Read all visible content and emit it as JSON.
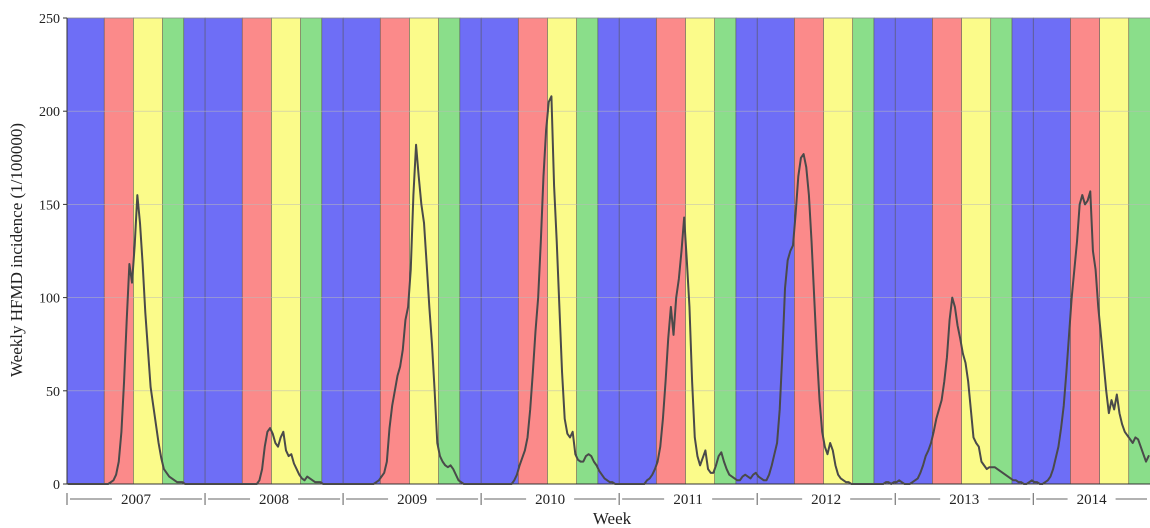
{
  "chart_data": {
    "type": "line",
    "title": "",
    "xlabel": "Week",
    "ylabel": "Weekly HFMD incidence (1/100000)",
    "ylim": [
      0,
      250
    ],
    "yticks": [
      0,
      50,
      100,
      150,
      200,
      250
    ],
    "grid": true,
    "legend": "none",
    "years": [
      "2007",
      "2008",
      "2009",
      "2010",
      "2011",
      "2012",
      "2013",
      "2014"
    ],
    "season_colors": {
      "blue": "#6e6ef6",
      "red": "#fb8a8a",
      "yellow": "#fbfb8a",
      "green": "#8ade8a"
    },
    "season_pattern_weeks": [
      {
        "color": "blue",
        "weeks": 14
      },
      {
        "color": "red",
        "weeks": 11
      },
      {
        "color": "yellow",
        "weeks": 11
      },
      {
        "color": "green",
        "weeks": 8
      },
      {
        "color": "blue",
        "weeks": 8
      }
    ],
    "line_color": "#4a4a4a",
    "series": [
      {
        "values": [
          0,
          0,
          0,
          0,
          0,
          0,
          0,
          0,
          0,
          0,
          0,
          0,
          0,
          0,
          0,
          0,
          1,
          2,
          5,
          12,
          28,
          55,
          88,
          118,
          108,
          128,
          155,
          140,
          118,
          92,
          72,
          52,
          42,
          32,
          22,
          14,
          8,
          6,
          4,
          3,
          2,
          1,
          1,
          1,
          0,
          0,
          0,
          0,
          0,
          0,
          0,
          0,
          0,
          0,
          0,
          0,
          0,
          0,
          0,
          0,
          0,
          0,
          0,
          0,
          0,
          0,
          0,
          0,
          0,
          0,
          0,
          0,
          2,
          8,
          20,
          28,
          30,
          27,
          22,
          20,
          25,
          28,
          18,
          15,
          16,
          11,
          8,
          5,
          3,
          2,
          4,
          3,
          2,
          1,
          1,
          1,
          0,
          0,
          0,
          0,
          0,
          0,
          0,
          0,
          0,
          0,
          0,
          0,
          0,
          0,
          0,
          0,
          0,
          0,
          0,
          0,
          1,
          2,
          4,
          6,
          12,
          30,
          42,
          50,
          58,
          63,
          72,
          88,
          95,
          115,
          155,
          182,
          165,
          150,
          140,
          118,
          95,
          75,
          50,
          22,
          15,
          12,
          10,
          9,
          10,
          8,
          5,
          2,
          1,
          0,
          0,
          0,
          0,
          0,
          0,
          0,
          0,
          0,
          0,
          0,
          0,
          0,
          0,
          0,
          0,
          0,
          0,
          0,
          2,
          5,
          10,
          14,
          18,
          25,
          40,
          60,
          82,
          100,
          130,
          165,
          190,
          205,
          208,
          160,
          130,
          95,
          60,
          35,
          27,
          25,
          28,
          16,
          13,
          12,
          12,
          15,
          16,
          15,
          12,
          10,
          7,
          5,
          3,
          2,
          1,
          1,
          0,
          0,
          0,
          0,
          0,
          0,
          0,
          0,
          0,
          0,
          0,
          0,
          2,
          3,
          5,
          8,
          12,
          20,
          35,
          55,
          78,
          95,
          80,
          100,
          110,
          125,
          143,
          120,
          95,
          55,
          25,
          15,
          10,
          14,
          18,
          8,
          6,
          6,
          10,
          15,
          17,
          12,
          8,
          5,
          4,
          3,
          2,
          2,
          4,
          5,
          4,
          3,
          5,
          6,
          4,
          3,
          2,
          2,
          5,
          10,
          16,
          22,
          40,
          70,
          105,
          120,
          125,
          128,
          145,
          165,
          175,
          177,
          170,
          155,
          130,
          100,
          70,
          45,
          28,
          20,
          16,
          22,
          18,
          10,
          5,
          3,
          2,
          1,
          1,
          0,
          0,
          0,
          0,
          0,
          0,
          0,
          0,
          0,
          0,
          0,
          0,
          0,
          1,
          1,
          0,
          1,
          1,
          2,
          1,
          0,
          0,
          0,
          1,
          2,
          3,
          6,
          10,
          15,
          18,
          22,
          28,
          35,
          40,
          45,
          55,
          68,
          88,
          100,
          95,
          85,
          78,
          70,
          65,
          55,
          40,
          25,
          22,
          20,
          12,
          10,
          8,
          9,
          9,
          9,
          8,
          7,
          6,
          5,
          4,
          3,
          2,
          2,
          1,
          1,
          0,
          0,
          1,
          2,
          1,
          1,
          0,
          0,
          1,
          2,
          4,
          8,
          14,
          20,
          30,
          42,
          60,
          80,
          100,
          115,
          130,
          150,
          155,
          150,
          152,
          157,
          125,
          115,
          95,
          80,
          65,
          50,
          38,
          45,
          40,
          48,
          38,
          32,
          28,
          26,
          24,
          22,
          25,
          24,
          20,
          16,
          12,
          15
        ]
      }
    ]
  }
}
